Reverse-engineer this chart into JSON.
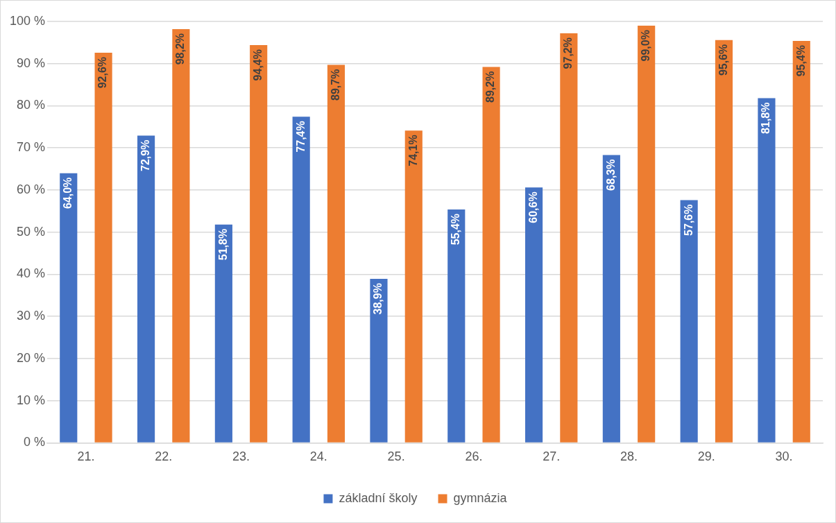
{
  "chart_data": {
    "type": "bar",
    "categories": [
      "21.",
      "22.",
      "23.",
      "24.",
      "25.",
      "26.",
      "27.",
      "28.",
      "29.",
      "30."
    ],
    "series": [
      {
        "name": "základní školy",
        "color": "#4472c4",
        "values": [
          64.0,
          72.9,
          51.8,
          77.4,
          38.9,
          55.4,
          60.6,
          68.3,
          57.6,
          81.8
        ],
        "value_labels": [
          "64,0%",
          "72,9%",
          "51,8%",
          "77,4%",
          "38,9%",
          "55,4%",
          "60,6%",
          "68,3%",
          "57,6%",
          "81,8%"
        ]
      },
      {
        "name": "gymnázia",
        "color": "#ed7d31",
        "values": [
          92.6,
          98.2,
          94.4,
          89.7,
          74.1,
          89.2,
          97.2,
          99.0,
          95.6,
          95.4
        ],
        "value_labels": [
          "92,6%",
          "98,2%",
          "94,4%",
          "89,7%",
          "74,1%",
          "89,2%",
          "97,2%",
          "99,0%",
          "95,6%",
          "95,4%"
        ]
      }
    ],
    "ylim": [
      0,
      100
    ],
    "yticks": [
      {
        "value": 0,
        "label": "0 %"
      },
      {
        "value": 10,
        "label": "10 %"
      },
      {
        "value": 20,
        "label": "20 %"
      },
      {
        "value": 30,
        "label": "30 %"
      },
      {
        "value": 40,
        "label": "40 %"
      },
      {
        "value": 50,
        "label": "50 %"
      },
      {
        "value": 60,
        "label": "60 %"
      },
      {
        "value": 70,
        "label": "70 %"
      },
      {
        "value": 80,
        "label": "80 %"
      },
      {
        "value": 90,
        "label": "90 %"
      },
      {
        "value": 100,
        "label": "100 %"
      }
    ],
    "grid": "y",
    "legend": "bottom"
  }
}
